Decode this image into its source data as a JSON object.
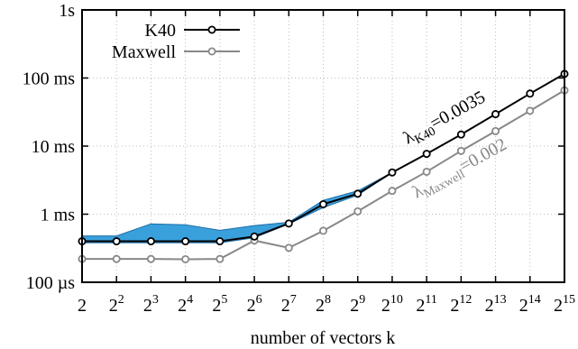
{
  "chart_data": {
    "type": "line",
    "xlabel": "number of vectors k",
    "x_ticks": [
      {
        "base": "2",
        "exp": ""
      },
      {
        "base": "2",
        "exp": "2"
      },
      {
        "base": "2",
        "exp": "3"
      },
      {
        "base": "2",
        "exp": "4"
      },
      {
        "base": "2",
        "exp": "5"
      },
      {
        "base": "2",
        "exp": "6"
      },
      {
        "base": "2",
        "exp": "7"
      },
      {
        "base": "2",
        "exp": "8"
      },
      {
        "base": "2",
        "exp": "9"
      },
      {
        "base": "2",
        "exp": "10"
      },
      {
        "base": "2",
        "exp": "11"
      },
      {
        "base": "2",
        "exp": "12"
      },
      {
        "base": "2",
        "exp": "13"
      },
      {
        "base": "2",
        "exp": "14"
      },
      {
        "base": "2",
        "exp": "15"
      }
    ],
    "x": [
      2,
      4,
      8,
      16,
      32,
      64,
      128,
      256,
      512,
      1024,
      2048,
      4096,
      8192,
      16384,
      32768
    ],
    "x_scale": "log2",
    "y_scale": "log10",
    "ylim": [
      0.0001,
      1
    ],
    "y_ticks": [
      {
        "value": 1,
        "label": "1s"
      },
      {
        "value": 0.1,
        "label": "100 ms"
      },
      {
        "value": 0.01,
        "label": "10 ms"
      },
      {
        "value": 0.001,
        "label": "1 ms"
      },
      {
        "value": 0.0001,
        "label": "100 µs"
      }
    ],
    "grid": true,
    "legend_position": "top-left",
    "series": [
      {
        "name": "K40",
        "color": "#000000",
        "marker": "open-circle",
        "values": [
          0.0004,
          0.0004,
          0.0004,
          0.0004,
          0.0004,
          0.00047,
          0.00073,
          0.0014,
          0.002,
          0.0041,
          0.0077,
          0.0148,
          0.0295,
          0.059,
          0.115
        ]
      },
      {
        "name": "Maxwell",
        "color": "#888888",
        "marker": "open-circle",
        "values": [
          0.00022,
          0.00022,
          0.00022,
          0.000218,
          0.00022,
          0.00041,
          0.00032,
          0.00057,
          0.0011,
          0.0022,
          0.0042,
          0.0085,
          0.0166,
          0.033,
          0.066
        ]
      }
    ],
    "band": {
      "series": "K40",
      "color": "#3aa0dc",
      "upper": [
        0.00048,
        0.00048,
        0.00072,
        0.0007,
        0.00058,
        0.00068,
        0.00076,
        0.0016,
        0.0022,
        0.0041,
        0.0077,
        0.0148,
        0.0295,
        0.059,
        0.115
      ],
      "lower": [
        0.00038,
        0.00038,
        0.00038,
        0.00038,
        0.00038,
        0.00045,
        0.00072,
        0.00125,
        0.0019,
        0.0041,
        0.0077,
        0.0148,
        0.0295,
        0.059,
        0.115
      ]
    },
    "annotations": [
      {
        "symbol": "λ",
        "subscript": "K40",
        "text": "=0.0035",
        "color": "#000000"
      },
      {
        "symbol": "λ",
        "subscript": "Maxwell",
        "text": "=0.002",
        "color": "#888888"
      }
    ]
  }
}
